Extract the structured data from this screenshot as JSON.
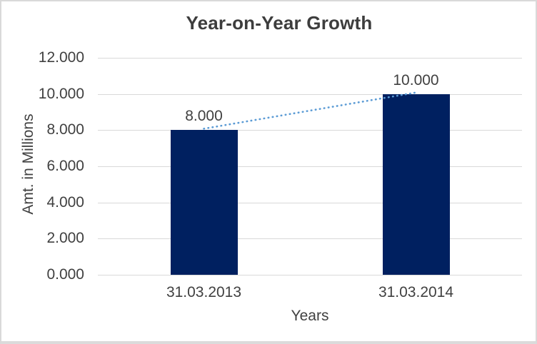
{
  "window": {
    "background": "#FFFFFF",
    "border_color": "#D9D9D9"
  },
  "chart_data": {
    "type": "bar",
    "title": "Year-on-Year Growth",
    "xlabel": "Years",
    "ylabel": "Amt. in Millions",
    "categories": [
      "31.03.2013",
      "31.03.2014"
    ],
    "series": [
      {
        "name": "Amount",
        "type": "bar",
        "color": "#002060",
        "values": [
          8,
          10
        ],
        "data_labels": [
          "8.000",
          "10.000"
        ]
      },
      {
        "name": "Trend",
        "type": "dotted-line",
        "color": "#5B9BD5",
        "values": [
          8,
          10
        ]
      }
    ],
    "ylim": [
      0,
      12
    ],
    "ytick_step": 2,
    "ytick_labels": [
      "12.000",
      "10.000",
      "8.000",
      "6.000",
      "4.000",
      "2.000",
      "0.000"
    ],
    "grid": "horizontal",
    "gridline_color": "#D9D9D9",
    "text_color": "#404040",
    "title_color": "#3D3D3D",
    "legend": "none"
  }
}
